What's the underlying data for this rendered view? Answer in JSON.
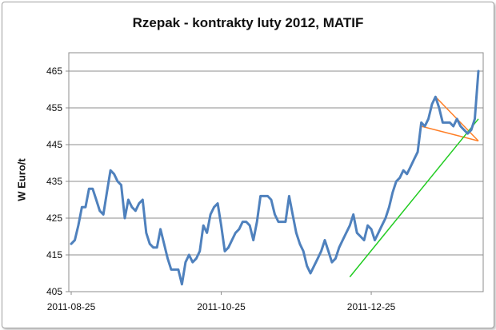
{
  "chart_data": {
    "type": "line",
    "title": "Rzepak - kontrakty luty 2012, MATIF",
    "xlabel": "",
    "ylabel": "W Euro/t",
    "ylim": [
      405,
      470
    ],
    "yticks": [
      405,
      415,
      425,
      435,
      445,
      455,
      465
    ],
    "xticks": [
      "2011-08-25",
      "2011-10-25",
      "2011-12-25"
    ],
    "grid": true,
    "legend": "none",
    "series": [
      {
        "color": "#4f81bd",
        "values": [
          418,
          419,
          423,
          428,
          428,
          433,
          433,
          430,
          427,
          426,
          432,
          438,
          437,
          435,
          434,
          425,
          430,
          428,
          427,
          429,
          430,
          421,
          418,
          417,
          417,
          422,
          418,
          414,
          411,
          411,
          411,
          407,
          413,
          415,
          413,
          414,
          416,
          423,
          421,
          426,
          428,
          429,
          423,
          416,
          417,
          419,
          421,
          422,
          424,
          424,
          423,
          419,
          424,
          431,
          431,
          431,
          430,
          426,
          424,
          424,
          424,
          431,
          426,
          421,
          418,
          416,
          412,
          410,
          412,
          414,
          416,
          419,
          416,
          413,
          414,
          417,
          419,
          421,
          423,
          426,
          421,
          420,
          419,
          423,
          422,
          419,
          421,
          423,
          425,
          428,
          432,
          435,
          436,
          438,
          437,
          439,
          441,
          443,
          451,
          450,
          452,
          456,
          458,
          455,
          451,
          451,
          451,
          450,
          452,
          450,
          449,
          448,
          449,
          452,
          465
        ]
      }
    ],
    "annotations": [
      {
        "type": "trendline",
        "color": "#ff7f27",
        "from": [
          102,
          458
        ],
        "to": [
          114,
          446
        ]
      },
      {
        "type": "trendline",
        "color": "#ff7f27",
        "from": [
          98,
          450
        ],
        "to": [
          114,
          446
        ]
      },
      {
        "type": "trendline",
        "color": "#22cc22",
        "from": [
          78,
          409
        ],
        "to": [
          114,
          452
        ]
      }
    ]
  }
}
